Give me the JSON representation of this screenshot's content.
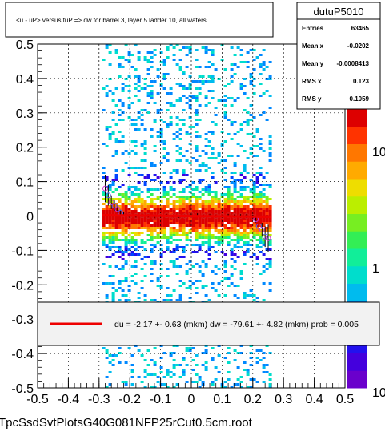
{
  "title": "<u - uP>      versus  tuP =>  dw for barrel 3, layer 5 ladder 10, all wafers",
  "footer": "TpcSsdSvtPlotsG40G081NFP25rCut0.5cm.root",
  "stats": {
    "name": "dutuP5010",
    "rows": [
      {
        "label": "Entries",
        "value": "63465"
      },
      {
        "label": "Mean x",
        "value": "-0.0202"
      },
      {
        "label": "Mean y",
        "value": "-0.0008413"
      },
      {
        "label": "RMS x",
        "value": "0.123"
      },
      {
        "label": "RMS y",
        "value": "0.1059"
      }
    ]
  },
  "fit_text": "du =   -2.17 +-  0.63 (mkm) dw =  -79.61 +-  4.82 (mkm) prob = 0.005",
  "colors": {
    "fit_line": "#ee0000",
    "profile_marker": "#cc33cc",
    "axis": "#000000",
    "legend_bg": "#f2f2f2"
  },
  "chart_data": {
    "type": "heatmap",
    "xlim": [
      -0.5,
      0.5
    ],
    "ylim": [
      -0.5,
      0.5
    ],
    "x_ticks": [
      "-0.5",
      "-0.4",
      "-0.3",
      "-0.2",
      "-0.1",
      "0",
      "0.1",
      "0.2",
      "0.3",
      "0.4",
      "0.5"
    ],
    "y_ticks": [
      "-0.5",
      "-0.4",
      "-0.3",
      "-0.2",
      "-0.1",
      "0",
      "0.1",
      "0.2",
      "0.3",
      "0.4",
      "0.5"
    ],
    "z_ticks": [
      "1",
      "10"
    ],
    "z_scale": "log",
    "z_range": [
      1,
      100
    ],
    "grid": true,
    "data_x_range": [
      -0.29,
      0.26
    ],
    "fit_line": {
      "x": [
        -0.29,
        0.26
      ],
      "y": [
        0.0022,
        -0.0022
      ]
    },
    "profile": {
      "x": [
        -0.28,
        -0.27,
        -0.26,
        -0.25,
        -0.24,
        -0.23,
        -0.22,
        -0.2,
        -0.18,
        -0.16,
        -0.14,
        -0.12,
        -0.1,
        -0.08,
        -0.06,
        -0.04,
        -0.02,
        0.0,
        0.02,
        0.04,
        0.06,
        0.08,
        0.1,
        0.12,
        0.14,
        0.16,
        0.18,
        0.2,
        0.21,
        0.22,
        0.23,
        0.24,
        0.25
      ],
      "y": [
        0.08,
        0.06,
        0.04,
        0.03,
        0.02,
        0.01,
        0.005,
        0.0,
        0.0,
        0.002,
        0.0,
        -0.003,
        0.0,
        0.002,
        0.0,
        -0.002,
        0.0,
        0.003,
        0.005,
        0.0,
        0.002,
        0.0,
        0.0,
        0.002,
        0.0,
        0.0,
        0.0,
        -0.002,
        -0.01,
        -0.03,
        -0.04,
        -0.06,
        -0.065
      ],
      "err": [
        0.04,
        0.03,
        0.02,
        0.015,
        0.01,
        0.008,
        0.006,
        0.005,
        0.004,
        0.004,
        0.003,
        0.003,
        0.003,
        0.003,
        0.003,
        0.003,
        0.003,
        0.003,
        0.003,
        0.003,
        0.003,
        0.003,
        0.003,
        0.004,
        0.004,
        0.005,
        0.006,
        0.008,
        0.01,
        0.015,
        0.02,
        0.03,
        0.04
      ]
    }
  }
}
